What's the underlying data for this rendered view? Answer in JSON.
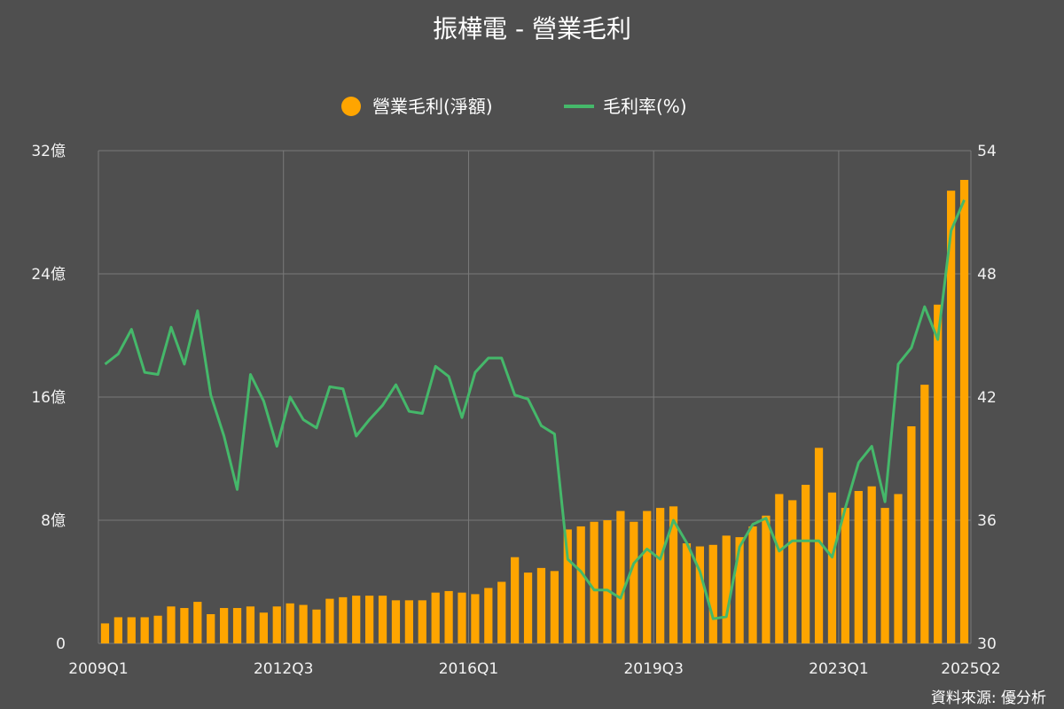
{
  "chart_data": {
    "type": "bar",
    "title": "振樺電 - 營業毛利",
    "source": "資料來源: 優分析",
    "legend_position": "top-center",
    "grid": true,
    "colors": {
      "background": "#4f4f4f",
      "bar": "#ffa500",
      "line": "#45b86a",
      "grid": "#7a7a7a"
    },
    "x_tick_labels": [
      "2009Q1",
      "2012Q3",
      "2016Q1",
      "2019Q3",
      "2023Q1",
      "2025Q2"
    ],
    "y_left": {
      "ylim": [
        0,
        32
      ],
      "ticks": [
        "0",
        "8億",
        "16億",
        "24億",
        "32億"
      ]
    },
    "y_right": {
      "ylim": [
        30,
        54
      ],
      "ticks": [
        "30",
        "36",
        "42",
        "48",
        "54"
      ]
    },
    "categories": [
      "2009Q1",
      "2009Q2",
      "2009Q3",
      "2009Q4",
      "2010Q1",
      "2010Q2",
      "2010Q3",
      "2010Q4",
      "2011Q1",
      "2011Q2",
      "2011Q3",
      "2011Q4",
      "2012Q1",
      "2012Q2",
      "2012Q3",
      "2012Q4",
      "2013Q1",
      "2013Q2",
      "2013Q3",
      "2013Q4",
      "2014Q1",
      "2014Q2",
      "2014Q3",
      "2014Q4",
      "2015Q1",
      "2015Q2",
      "2015Q3",
      "2015Q4",
      "2016Q1",
      "2016Q2",
      "2016Q3",
      "2016Q4",
      "2017Q1",
      "2017Q2",
      "2017Q3",
      "2017Q4",
      "2018Q1",
      "2018Q2",
      "2018Q3",
      "2018Q4",
      "2019Q1",
      "2019Q2",
      "2019Q3",
      "2019Q4",
      "2020Q1",
      "2020Q2",
      "2020Q3",
      "2020Q4",
      "2021Q1",
      "2021Q2",
      "2021Q3",
      "2021Q4",
      "2022Q1",
      "2022Q2",
      "2022Q3",
      "2022Q4",
      "2023Q1",
      "2023Q2",
      "2023Q3",
      "2023Q4",
      "2024Q1",
      "2024Q2",
      "2024Q3",
      "2024Q4",
      "2025Q1",
      "2025Q2"
    ],
    "series": [
      {
        "name": "營業毛利(淨額)",
        "type": "bar",
        "axis": "left",
        "unit": "億",
        "values": [
          1.3,
          1.7,
          1.7,
          1.7,
          1.8,
          2.4,
          2.3,
          2.7,
          1.9,
          2.3,
          2.3,
          2.4,
          2.0,
          2.4,
          2.6,
          2.5,
          2.2,
          2.9,
          3.0,
          3.1,
          3.1,
          3.1,
          2.8,
          2.8,
          2.8,
          3.3,
          3.4,
          3.3,
          3.2,
          3.6,
          4.0,
          5.6,
          4.6,
          4.9,
          4.7,
          7.4,
          7.6,
          7.9,
          8.0,
          8.6,
          7.9,
          8.6,
          8.8,
          8.9,
          6.5,
          6.3,
          6.4,
          7.0,
          6.9,
          7.6,
          8.3,
          9.7,
          9.3,
          10.3,
          12.7,
          9.8,
          8.8,
          9.9,
          10.2,
          8.8,
          9.7,
          14.1,
          16.8,
          22.0,
          29.4,
          30.1
        ]
      },
      {
        "name": "毛利率(%)",
        "type": "line",
        "axis": "right",
        "values": [
          43.6,
          44.1,
          45.3,
          43.2,
          43.1,
          45.4,
          43.6,
          46.2,
          42.1,
          40.1,
          37.5,
          43.1,
          41.8,
          39.6,
          42.0,
          40.9,
          40.5,
          42.5,
          42.4,
          40.1,
          40.9,
          41.6,
          42.6,
          41.3,
          41.2,
          43.5,
          43.0,
          41.0,
          43.2,
          43.9,
          43.9,
          42.1,
          41.9,
          40.6,
          40.2,
          34.1,
          33.5,
          32.6,
          32.6,
          32.2,
          33.9,
          34.6,
          34.1,
          36.0,
          34.9,
          33.5,
          31.2,
          31.3,
          34.7,
          35.8,
          36.1,
          34.5,
          35.0,
          35.0,
          35.0,
          34.2,
          36.6,
          38.8,
          39.6,
          36.9,
          43.6,
          44.4,
          46.4,
          44.8,
          50.1,
          51.6
        ]
      }
    ]
  }
}
